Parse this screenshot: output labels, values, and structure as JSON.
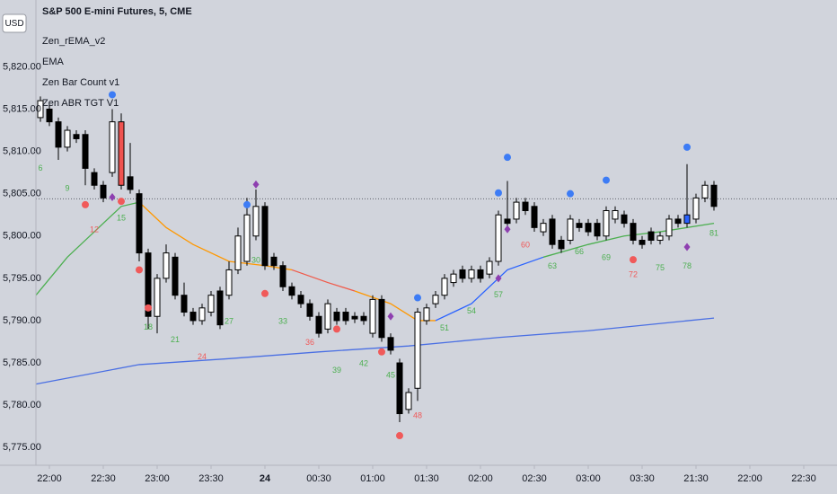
{
  "chart_data": {
    "type": "candlestick",
    "title": "S&P 500 E-mini Futures, 5, CME",
    "currency": "USD",
    "indicators": [
      "Zen_rEMA_v2",
      "EMA",
      "Zen Bar Count v1",
      "Zen ABR TGT V1"
    ],
    "xlim": [
      -1.5,
      87.7
    ],
    "ylim": [
      5772.9,
      5827.9
    ],
    "xticks": [
      {
        "value": 0,
        "label": "22:00"
      },
      {
        "value": 6,
        "label": "22:30"
      },
      {
        "value": 12,
        "label": "23:00"
      },
      {
        "value": 18,
        "label": "23:30"
      },
      24,
      {
        "value": 30,
        "label": "00:30"
      },
      {
        "value": 36,
        "label": "01:00"
      },
      {
        "value": 42,
        "label": "01:30"
      },
      {
        "value": 48,
        "label": "02:00"
      },
      {
        "value": 54,
        "label": "02:30"
      },
      {
        "value": 60,
        "label": "03:00"
      },
      {
        "value": 66,
        "label": "03:30"
      },
      {
        "value": 72,
        "label": "21:30"
      },
      {
        "value": 78,
        "label": "22:00"
      },
      {
        "value": 84,
        "label": "22:30"
      }
    ],
    "yticks": [
      {
        "value": 5775,
        "label": "5,775.00"
      },
      {
        "value": 5780,
        "label": "5,780.00"
      },
      {
        "value": 5785,
        "label": "5,785.00"
      },
      {
        "value": 5790,
        "label": "5,790.00"
      },
      {
        "value": 5795,
        "label": "5,795.00"
      },
      {
        "value": 5800,
        "label": "5,800.00"
      },
      {
        "value": 5805,
        "label": "5,805.00"
      },
      {
        "value": 5810,
        "label": "5,810.00"
      },
      {
        "value": 5815,
        "label": "5,815.00"
      },
      {
        "value": 5820,
        "label": "5,820.00"
      }
    ],
    "up_color": "#ffffff",
    "down_color": "#000000",
    "candles": {
      "x": [
        -1,
        0,
        1,
        2,
        3,
        4,
        5,
        6,
        7,
        8,
        9,
        10,
        11,
        12,
        13,
        14,
        15,
        16,
        17,
        18,
        19,
        20,
        21,
        22,
        23,
        24,
        25,
        26,
        27,
        28,
        29,
        30,
        31,
        32,
        33,
        34,
        35,
        36,
        37,
        38,
        39,
        40,
        41,
        42,
        43,
        44,
        45,
        46,
        47,
        48,
        49,
        50,
        51,
        52,
        53,
        54,
        55,
        56,
        57,
        58,
        59,
        60,
        61,
        62,
        63,
        64,
        65,
        66,
        67,
        68,
        69,
        70,
        71,
        72,
        73,
        74
      ],
      "open": [
        5814,
        5815,
        5813.5,
        5810.5,
        5812,
        5812,
        5807.5,
        5806,
        5807.5,
        5813.5,
        5807,
        5805,
        5798,
        5790.5,
        5795,
        5797.5,
        5793,
        5791,
        5790,
        5791,
        5793.5,
        5793,
        5796,
        5797,
        5800,
        5803.5,
        5797.5,
        5796.5,
        5794,
        5793,
        5792,
        5790.5,
        5789,
        5791,
        5791,
        5790.5,
        5790.5,
        5788.5,
        5792.5,
        5788,
        5785,
        5779.5,
        5782,
        5790,
        5792,
        5793,
        5794.5,
        5796,
        5795,
        5796,
        5795.5,
        5797,
        5802,
        5802,
        5804,
        5803.5,
        5800.5,
        5802,
        5799.5,
        5799.5,
        5801.5,
        5801.5,
        5801.5,
        5800,
        5802,
        5802.5,
        5801.5,
        5799.5,
        5800.5,
        5799.5,
        5800,
        5802,
        5801.5,
        5802,
        5804.5,
        5806
      ],
      "high": [
        5816.5,
        5815.5,
        5814,
        5813,
        5812.5,
        5812.5,
        5808,
        5806.5,
        5815,
        5814.5,
        5811,
        5805.5,
        5798.5,
        5795.5,
        5799,
        5798,
        5794.5,
        5791.5,
        5792,
        5793.5,
        5794,
        5797,
        5801,
        5804.5,
        5805.5,
        5804,
        5798,
        5797,
        5794.5,
        5793.5,
        5792.5,
        5791,
        5792.5,
        5791.5,
        5791.5,
        5791,
        5791,
        5793,
        5793,
        5788.5,
        5785.5,
        5782,
        5791.5,
        5792,
        5793.5,
        5795.5,
        5796,
        5796.5,
        5796.5,
        5796.5,
        5797.5,
        5803,
        5806.5,
        5804.5,
        5804.5,
        5804,
        5802,
        5802.5,
        5800,
        5802.5,
        5802,
        5802,
        5802,
        5803.5,
        5803.5,
        5803,
        5802,
        5800,
        5801,
        5800.5,
        5802.5,
        5802.5,
        5808.5,
        5805,
        5806.5,
        5806.5
      ],
      "low": [
        5813.5,
        5813,
        5809,
        5810,
        5811,
        5806,
        5805.5,
        5804,
        5807,
        5805.5,
        5805,
        5797,
        5789,
        5788.5,
        5794.5,
        5792.5,
        5790.5,
        5789.5,
        5789.5,
        5790.5,
        5789,
        5792.5,
        5795.5,
        5796.5,
        5799.5,
        5796,
        5796,
        5793.5,
        5792.5,
        5791.5,
        5790,
        5788,
        5788.5,
        5789.5,
        5789.5,
        5789.7,
        5789.5,
        5788,
        5787.5,
        5786,
        5778,
        5779,
        5780.5,
        5789.5,
        5791.5,
        5792.5,
        5794,
        5794.5,
        5794.5,
        5794.5,
        5795,
        5796.5,
        5801,
        5801.5,
        5802.5,
        5800.5,
        5800,
        5798.5,
        5798,
        5799,
        5800.5,
        5800,
        5799.5,
        5799.5,
        5801.5,
        5801,
        5799,
        5798.5,
        5799,
        5799,
        5799.5,
        5801,
        5801,
        5801.5,
        5804,
        5803
      ],
      "close": [
        5816,
        5813.5,
        5810.5,
        5812.5,
        5811.5,
        5808,
        5806,
        5804.5,
        5813.5,
        5806,
        5805.5,
        5798,
        5790.5,
        5795,
        5798,
        5793,
        5791,
        5790,
        5791.5,
        5793,
        5789.5,
        5796,
        5800,
        5802.5,
        5803.5,
        5796.5,
        5796.5,
        5794,
        5793,
        5792,
        5790.5,
        5788.5,
        5792,
        5790,
        5790,
        5790.2,
        5790,
        5792.5,
        5788,
        5786.5,
        5779,
        5781.5,
        5791,
        5791.5,
        5793,
        5795,
        5795.5,
        5795,
        5796,
        5795,
        5797,
        5802.5,
        5801.5,
        5804,
        5803,
        5801,
        5801.5,
        5799,
        5798.5,
        5802,
        5801,
        5800.5,
        5800,
        5803,
        5803,
        5801.5,
        5799.5,
        5799,
        5799.5,
        5800,
        5802,
        5801.5,
        5802.5,
        5804.5,
        5806,
        5803.5
      ]
    },
    "colored_bars": {
      "x": [
        8,
        71
      ],
      "colors": [
        "#ef5350",
        "#2962ff"
      ]
    },
    "price_line": 5804.4,
    "lines": [
      {
        "color": "#4a6fe3",
        "x": [
          -1.5,
          10,
          20,
          30,
          40,
          50,
          60,
          74
        ],
        "values": [
          5782.5,
          5784.8,
          5785.5,
          5786.3,
          5787,
          5788,
          5788.8,
          5790.3
        ]
      },
      {
        "color": "#4caf50",
        "x": [
          -1.5,
          2,
          5,
          8,
          10
        ],
        "values": [
          5793,
          5797.5,
          5800.5,
          5803.5,
          5804
        ]
      },
      {
        "color": "#ff9800",
        "x": [
          10,
          13,
          16,
          20,
          24,
          27
        ],
        "values": [
          5804,
          5801,
          5799,
          5797,
          5796.5,
          5796
        ]
      },
      {
        "color": "#f05a4a",
        "x": [
          27,
          31,
          34
        ],
        "values": [
          5796,
          5794.5,
          5793.5
        ]
      },
      {
        "color": "#ff9800",
        "x": [
          34,
          38,
          41,
          43
        ],
        "values": [
          5793.5,
          5792,
          5790,
          5790
        ]
      },
      {
        "color": "#2962ff",
        "x": [
          43,
          47,
          51,
          55
        ],
        "values": [
          5790,
          5792,
          5796,
          5797.5
        ]
      },
      {
        "color": "#4caf50",
        "x": [
          55,
          60,
          64,
          68,
          74
        ],
        "values": [
          5797.5,
          5799,
          5800,
          5800.5,
          5801.5
        ]
      }
    ],
    "markers": [
      {
        "shape": "circle",
        "color": "#f05a5a",
        "x": [
          4,
          8,
          10,
          11,
          24,
          32,
          37,
          39,
          65
        ],
        "values": [
          5803.7,
          5804.1,
          5796,
          5791.5,
          5793.2,
          5789,
          5786.3,
          5776.4,
          5797.2
        ]
      },
      {
        "shape": "circle",
        "color": "#3d7cf5",
        "x": [
          7,
          22,
          41,
          50,
          51,
          58,
          62,
          71
        ],
        "values": [
          5816.7,
          5803.7,
          5792.7,
          5805.1,
          5809.3,
          5805,
          5806.6,
          5810.5
        ]
      },
      {
        "shape": "diamond",
        "color": "#8e3fb0",
        "x": [
          7,
          23,
          38,
          50,
          51,
          71
        ],
        "values": [
          5804.6,
          5806.1,
          5790.5,
          5795,
          5800.8,
          5798.7
        ]
      }
    ],
    "bar_counts": {
      "x": [
        -1,
        2,
        5,
        8,
        11,
        14,
        17,
        20,
        23,
        26,
        29,
        32,
        35,
        38,
        41,
        44,
        47,
        50,
        53,
        56,
        59,
        62,
        65,
        68,
        71,
        74
      ],
      "values": [
        5808,
        5805.6,
        5800.7,
        5802.1,
        5789.2,
        5787.7,
        5785.7,
        5789.9,
        5797.1,
        5789.9,
        5787.4,
        5784.1,
        5784.9,
        5783.5,
        5778.7,
        5789.1,
        5791.1,
        5793,
        5798.9,
        5796.4,
        5798.1,
        5797.4,
        5795.4,
        5796.2,
        5796.4,
        5800.3
      ],
      "labels": [
        6,
        9,
        12,
        15,
        18,
        21,
        24,
        27,
        30,
        33,
        36,
        39,
        42,
        45,
        48,
        51,
        54,
        57,
        60,
        63,
        66,
        69,
        72,
        75,
        78,
        81
      ],
      "colors": [
        "#4caf50",
        "#4caf50",
        "#f05a5a",
        "#4caf50",
        "#4caf50",
        "#4caf50",
        "#f05a5a",
        "#4caf50",
        "#4caf50",
        "#4caf50",
        "#f05a5a",
        "#4caf50",
        "#4caf50",
        "#4caf50",
        "#f05a5a",
        "#4caf50",
        "#4caf50",
        "#4caf50",
        "#f05a5a",
        "#4caf50",
        "#4caf50",
        "#4caf50",
        "#f05a5a",
        "#4caf50",
        "#4caf50",
        "#4caf50"
      ]
    }
  }
}
